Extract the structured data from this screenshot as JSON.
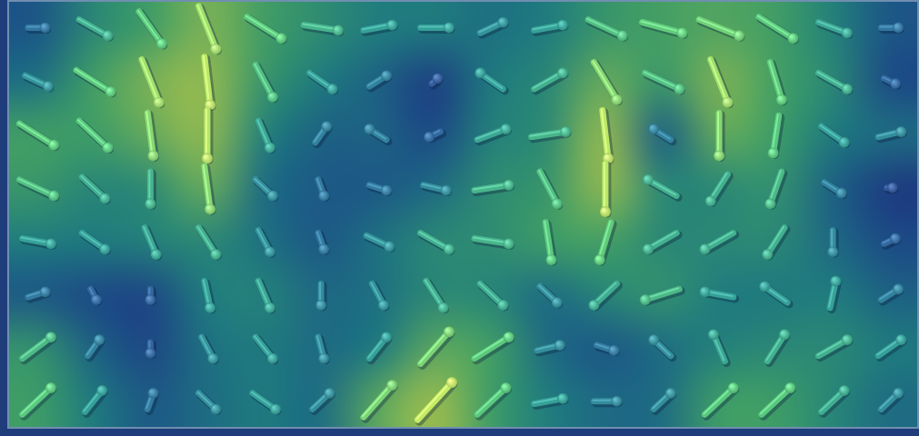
{
  "chart_data": {
    "type": "quiver",
    "x": [
      0.5,
      1.5,
      2.5,
      3.5,
      4.5,
      5.5,
      6.5,
      7.5,
      8.5,
      9.5,
      10.5,
      11.5,
      12.5,
      13.5,
      14.5,
      15.5
    ],
    "y": [
      7.5,
      6.5,
      5.5,
      4.5,
      3.5,
      2.5,
      1.5,
      0.5
    ],
    "u": [
      [
        0.3,
        0.5,
        0.4,
        0.3,
        0.6,
        0.6,
        0.5,
        0.5,
        0.4,
        0.5,
        0.6,
        0.7,
        0.7,
        0.6,
        0.5,
        0.3
      ],
      [
        0.4,
        0.6,
        0.3,
        0.1,
        0.3,
        0.4,
        0.3,
        0.1,
        -0.4,
        0.5,
        0.4,
        0.6,
        0.3,
        0.2,
        0.5,
        0.2
      ],
      [
        0.6,
        0.5,
        0.1,
        0,
        0.2,
        0.2,
        -0.3,
        -0.2,
        0.5,
        0.6,
        0.1,
        -0.3,
        0,
        -0.1,
        0.4,
        0.4
      ],
      [
        0.6,
        0.4,
        0,
        0.1,
        0.3,
        0.1,
        0.3,
        0.4,
        0.6,
        0.3,
        0,
        -0.5,
        -0.3,
        -0.2,
        0.3,
        0.1
      ],
      [
        0.5,
        0.4,
        0.2,
        0.3,
        0.2,
        0.1,
        0.4,
        0.5,
        0.6,
        0.1,
        -0.2,
        -0.5,
        -0.5,
        -0.3,
        0,
        0.2
      ],
      [
        0.3,
        0.1,
        0,
        0.1,
        0.2,
        0,
        0.2,
        0.3,
        0.4,
        0.3,
        -0.4,
        -0.6,
        -0.5,
        -0.4,
        0.1,
        0.3
      ],
      [
        0.5,
        0.2,
        0,
        0.2,
        0.3,
        0.1,
        0.3,
        0.5,
        0.6,
        0.4,
        0.3,
        -0.3,
        -0.2,
        0.3,
        0.5,
        0.4
      ],
      [
        0.5,
        0.3,
        0.1,
        0.3,
        0.4,
        0.3,
        0.5,
        0.6,
        0.5,
        0.5,
        0.4,
        0.3,
        0.5,
        0.5,
        0.4,
        0.3
      ]
    ],
    "v": [
      [
        0,
        -0.3,
        -0.6,
        -0.8,
        -0.4,
        -0.1,
        0.1,
        0,
        0.2,
        0.1,
        -0.3,
        -0.2,
        -0.3,
        -0.4,
        -0.2,
        0
      ],
      [
        -0.2,
        -0.4,
        -0.8,
        -0.9,
        -0.6,
        -0.3,
        0.2,
        0.1,
        0.3,
        0.3,
        -0.7,
        -0.3,
        -0.8,
        -0.7,
        -0.3,
        -0.1
      ],
      [
        -0.4,
        -0.5,
        -0.8,
        -0.9,
        -0.5,
        0.3,
        0.2,
        -0.1,
        0.2,
        0.1,
        -0.9,
        0.2,
        -0.8,
        -0.7,
        -0.3,
        0.1
      ],
      [
        -0.3,
        -0.4,
        -0.6,
        -0.8,
        -0.3,
        -0.3,
        -0.1,
        -0.1,
        0.1,
        -0.6,
        -0.9,
        0.3,
        -0.5,
        -0.6,
        -0.2,
        0
      ],
      [
        -0.1,
        -0.3,
        -0.5,
        -0.5,
        -0.4,
        -0.3,
        -0.2,
        -0.3,
        -0.1,
        -0.7,
        -0.7,
        -0.3,
        -0.3,
        -0.5,
        -0.4,
        0.1
      ],
      [
        0.1,
        -0.2,
        -0.2,
        -0.5,
        -0.5,
        -0.4,
        -0.4,
        -0.5,
        -0.4,
        -0.3,
        -0.4,
        -0.2,
        0.1,
        0.3,
        0.5,
        0.2
      ],
      [
        0.4,
        0.3,
        -0.2,
        -0.4,
        -0.4,
        -0.4,
        0.4,
        0.6,
        0.4,
        0.1,
        -0.1,
        0.3,
        0.5,
        0.5,
        0.3,
        0.3
      ],
      [
        0.5,
        0.4,
        0.3,
        -0.3,
        -0.3,
        0.3,
        0.6,
        0.7,
        0.5,
        0.1,
        0,
        0.3,
        0.5,
        0.5,
        0.4,
        0.3
      ]
    ],
    "xlim": [
      0,
      16
    ],
    "ylim": [
      0,
      8
    ],
    "grid": false,
    "tick_labels": false
  }
}
